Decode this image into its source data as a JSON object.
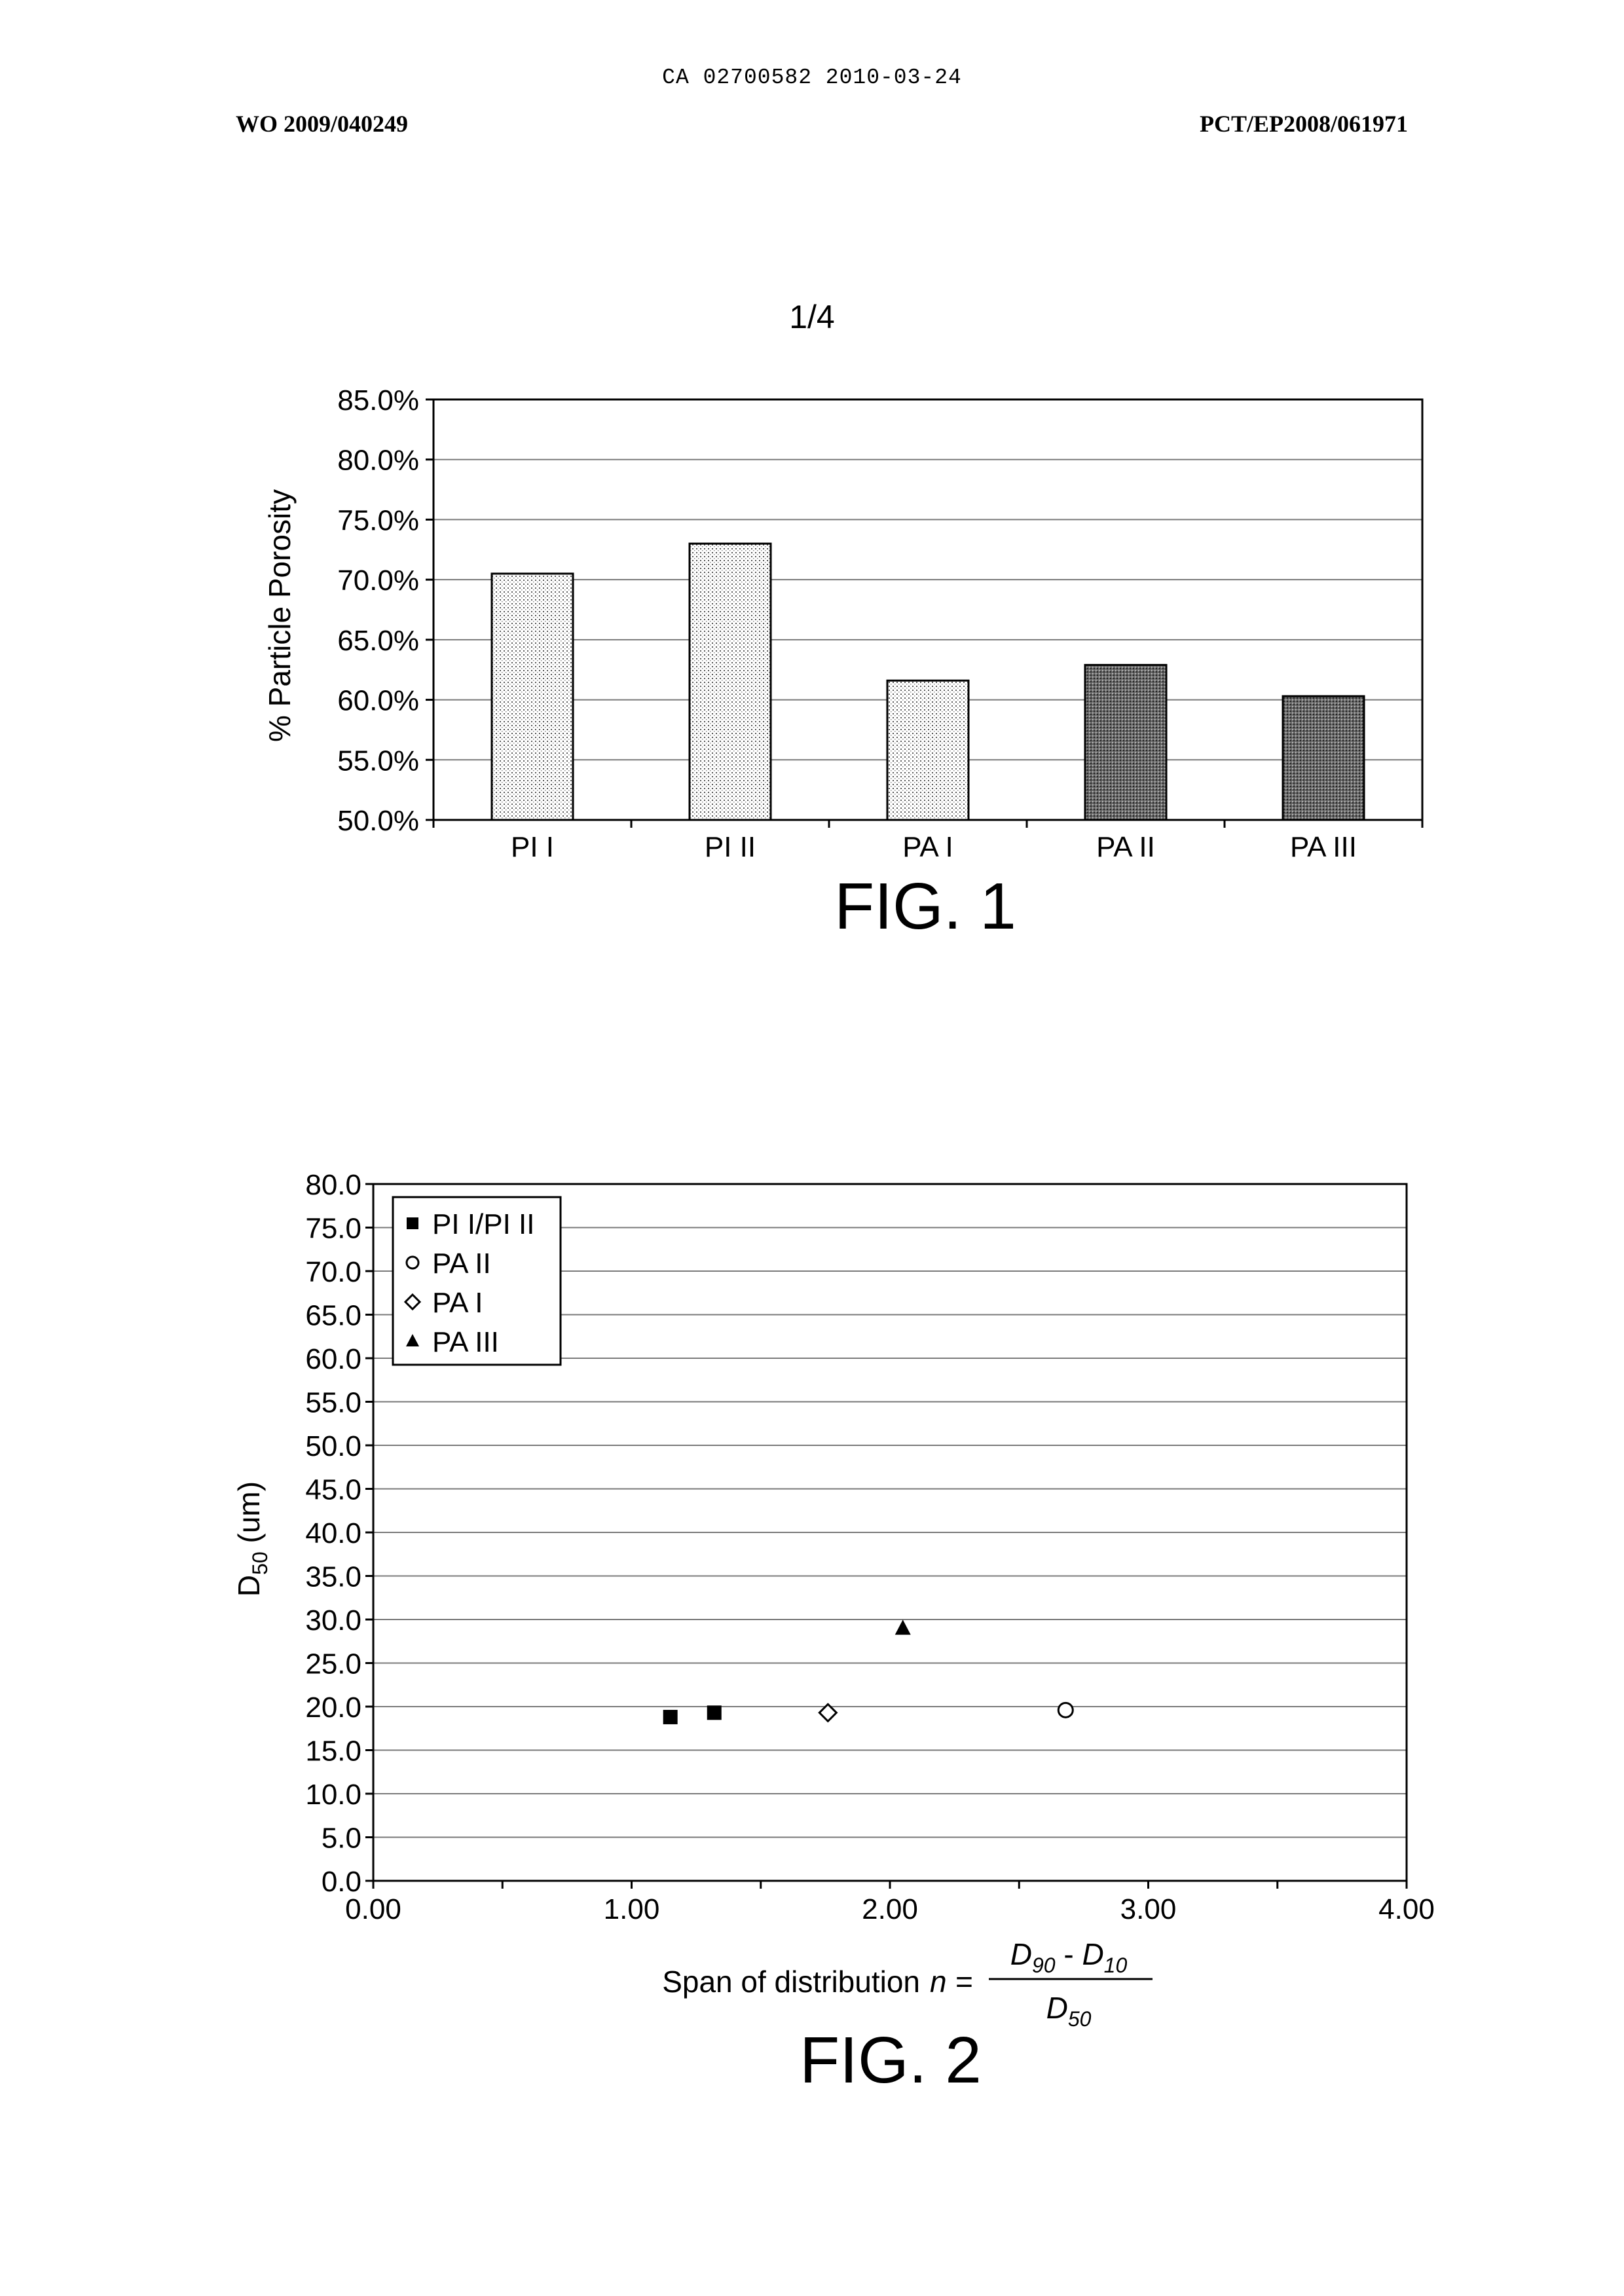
{
  "header": {
    "ca_line": "CA 02700582 2010-03-24",
    "wo_number": "WO 2009/040249",
    "pct_number": "PCT/EP2008/061971",
    "page": "1/4"
  },
  "chart_data": [
    {
      "type": "bar",
      "caption": "FIG. 1",
      "ylabel": "% Particle Porosity",
      "xlabel": "",
      "categories": [
        "PI I",
        "PI II",
        "PA I",
        "PA II",
        "PA III"
      ],
      "values": [
        70.5,
        73.0,
        61.6,
        62.9,
        60.3
      ],
      "fill": [
        "light-dotted",
        "light-dotted",
        "light-dotted",
        "dark-dotted",
        "dark-dotted"
      ],
      "ylim": [
        50.0,
        85.0
      ],
      "ytick_step": 5.0,
      "ytick_labels": [
        "50.0%",
        "55.0%",
        "60.0%",
        "65.0%",
        "70.0%",
        "75.0%",
        "80.0%",
        "85.0%"
      ],
      "grid": true,
      "legend": "none"
    },
    {
      "type": "scatter",
      "caption": "FIG. 2",
      "ylabel": "D50 (um)",
      "xlabel": "Span of distribution n = (D90 - D10) / D50",
      "xlim": [
        0.0,
        4.0
      ],
      "ylim": [
        0.0,
        80.0
      ],
      "xtick_labels": [
        "0.00",
        "1.00",
        "2.00",
        "3.00",
        "4.00"
      ],
      "ytick_labels": [
        "0.0",
        "5.0",
        "10.0",
        "15.0",
        "20.0",
        "25.0",
        "30.0",
        "35.0",
        "40.0",
        "45.0",
        "50.0",
        "55.0",
        "60.0",
        "65.0",
        "70.0",
        "75.0",
        "80.0"
      ],
      "grid": true,
      "legend": "top-left",
      "series": [
        {
          "name": "PI I/PI II",
          "marker": "square-filled",
          "points": [
            [
              1.15,
              18.8
            ],
            [
              1.32,
              19.3
            ]
          ]
        },
        {
          "name": "PA II",
          "marker": "circle-open",
          "points": [
            [
              2.68,
              19.6
            ]
          ]
        },
        {
          "name": "PA I",
          "marker": "diamond-open",
          "points": [
            [
              1.76,
              19.3
            ]
          ]
        },
        {
          "name": "PA III",
          "marker": "triangle-filled",
          "points": [
            [
              2.05,
              29.0
            ]
          ]
        }
      ]
    }
  ],
  "fig2_label": {
    "d50_base": "D",
    "d50_sub": "50",
    "d50_unit": "(um)",
    "span_text": "Span of distribution",
    "n_text": "n =",
    "num_d90": "D",
    "num_90": "90",
    "num_minus": "-",
    "num_d10": "D",
    "num_10": "10",
    "den_d50": "D",
    "den_50": "50"
  }
}
